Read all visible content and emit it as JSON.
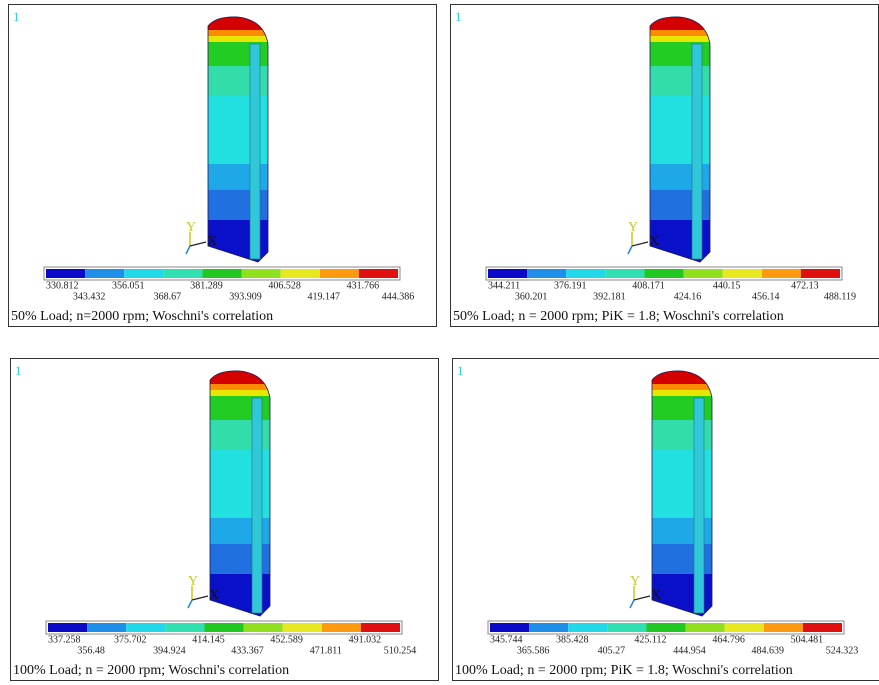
{
  "panels": [
    {
      "id": "1",
      "axis_y": "Y",
      "axis_x": "X",
      "legend": [
        "330.812",
        "343.432",
        "356.051",
        "368.67",
        "381.289",
        "393.909",
        "406.528",
        "419.147",
        "431.766",
        "444.386"
      ],
      "caption": "50% Load; n=2000 rpm; Woschni's correlation"
    },
    {
      "id": "1",
      "axis_y": "Y",
      "axis_x": "X",
      "legend": [
        "344.211",
        "360.201",
        "376.191",
        "392.181",
        "408.171",
        "424.16",
        "440.15",
        "456.14",
        "472.13",
        "488.119"
      ],
      "caption": "50% Load; n = 2000 rpm; PiK = 1.8; Woschni's correlation"
    },
    {
      "id": "1",
      "axis_y": "Y",
      "axis_x": "X",
      "legend": [
        "337.258",
        "356.48",
        "375.702",
        "394.924",
        "414.145",
        "433.367",
        "452.589",
        "471.811",
        "491.032",
        "510.254"
      ],
      "caption": "100% Load; n = 2000 rpm; Woschni's correlation"
    },
    {
      "id": "1",
      "axis_y": "Y",
      "axis_x": "X",
      "legend": [
        "345.744",
        "365.586",
        "385.428",
        "405.27",
        "425.112",
        "444.954",
        "464.796",
        "484.639",
        "504.481",
        "524.323"
      ],
      "caption": "100% Load; n = 2000 rpm; PiK = 1.8; Woschni's correlation"
    }
  ]
}
